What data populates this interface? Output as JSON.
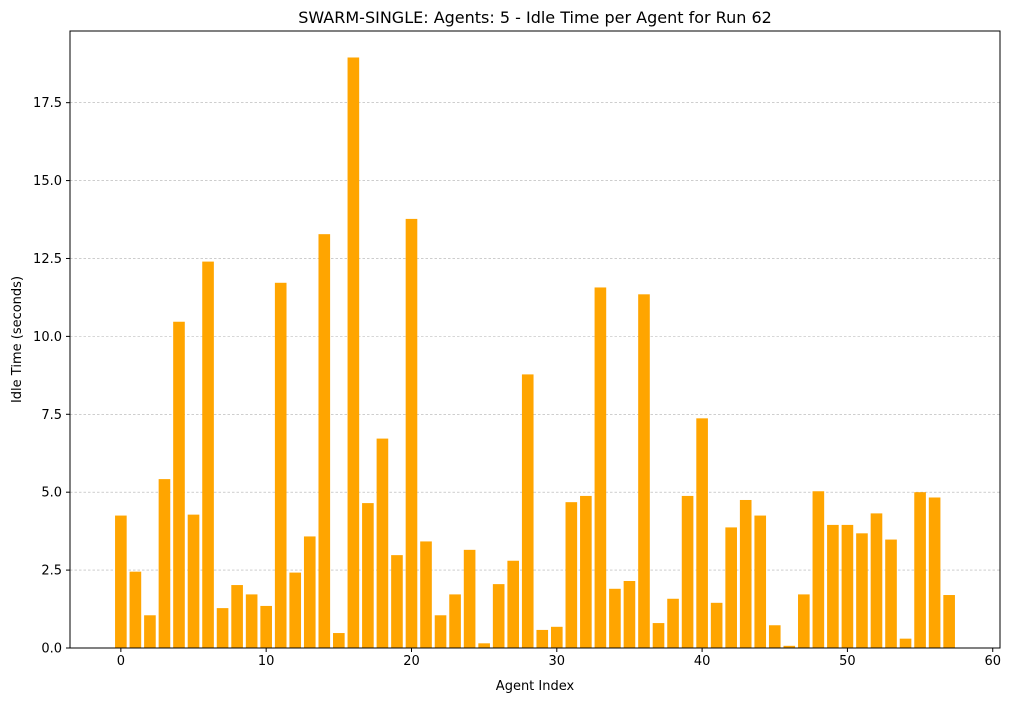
{
  "chart_data": {
    "type": "bar",
    "title": "SWARM-SINGLE: Agents: 5 - Idle Time per Agent for Run 62",
    "xlabel": "Agent Index",
    "ylabel": "Idle Time (seconds)",
    "bar_color": "#FFA500",
    "grid": "horizontal dashed",
    "xlim": [
      -3.5,
      60.5
    ],
    "ylim": [
      0,
      19.8
    ],
    "x_ticks": [
      0,
      10,
      20,
      30,
      40,
      50,
      60
    ],
    "x_tick_labels": [
      "0",
      "10",
      "20",
      "30",
      "40",
      "50",
      "60"
    ],
    "y_ticks": [
      0,
      2.5,
      5,
      7.5,
      10,
      12.5,
      15,
      17.5
    ],
    "y_tick_labels": [
      "0.0",
      "2.5",
      "5.0",
      "7.5",
      "10.0",
      "12.5",
      "15.0",
      "17.5"
    ],
    "x": [
      0,
      1,
      2,
      3,
      4,
      5,
      6,
      7,
      8,
      9,
      10,
      11,
      12,
      13,
      14,
      15,
      16,
      17,
      18,
      19,
      20,
      21,
      22,
      23,
      24,
      25,
      26,
      27,
      28,
      29,
      30,
      31,
      32,
      33,
      34,
      35,
      36,
      37,
      38,
      39,
      40,
      41,
      42,
      43,
      44,
      45,
      46,
      47,
      48,
      49,
      50,
      51,
      52,
      53,
      54,
      55,
      56,
      57
    ],
    "values": [
      4.25,
      2.45,
      1.05,
      5.42,
      10.47,
      4.28,
      12.4,
      1.28,
      2.02,
      1.72,
      1.35,
      11.72,
      2.42,
      3.58,
      13.28,
      0.48,
      18.95,
      4.65,
      6.72,
      2.98,
      13.77,
      3.42,
      1.05,
      1.72,
      3.15,
      0.15,
      2.05,
      2.8,
      8.78,
      0.58,
      0.68,
      4.68,
      4.88,
      11.57,
      1.9,
      2.15,
      11.35,
      0.8,
      1.58,
      4.88,
      7.37,
      1.45,
      3.87,
      4.75,
      4.25,
      0.73,
      0.07,
      1.72,
      5.03,
      3.95,
      3.95,
      3.68,
      4.32,
      3.48,
      0.3,
      5.0,
      4.83,
      1.7
    ]
  }
}
